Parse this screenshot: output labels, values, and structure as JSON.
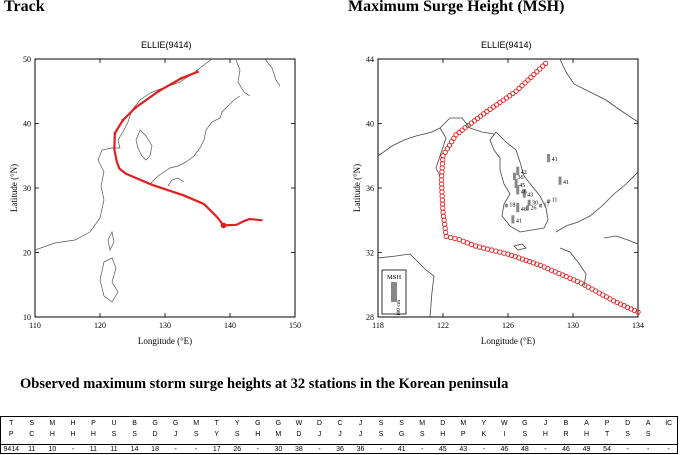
{
  "sections": {
    "track_title": "Track",
    "msh_title": "Maximum Surge Height (MSH)"
  },
  "maps": {
    "track": {
      "storm_label": "ELLIE(9414)",
      "xlabel": "Longitude (°E)",
      "ylabel": "Latitude (°N)",
      "x_ticks": [
        "110",
        "120",
        "130",
        "140",
        "150"
      ],
      "y_ticks": [
        "50",
        "40",
        "30",
        "20",
        "10"
      ],
      "xlim": [
        110,
        150
      ],
      "ylim": [
        10,
        50
      ],
      "track_color": "#e02020",
      "track_points": [
        [
          145,
          25
        ],
        [
          143,
          25.2
        ],
        [
          142,
          24.8
        ],
        [
          141,
          24.3
        ],
        [
          139,
          24.2
        ],
        [
          138,
          25.5
        ],
        [
          136,
          27.5
        ],
        [
          133,
          28.8
        ],
        [
          128,
          30.5
        ],
        [
          124,
          32.2
        ],
        [
          123,
          33
        ],
        [
          122.6,
          34
        ],
        [
          122.2,
          36
        ],
        [
          122.3,
          38.5
        ],
        [
          123.5,
          40.5
        ],
        [
          125.5,
          42.5
        ],
        [
          129,
          45
        ],
        [
          132.5,
          47
        ],
        [
          135,
          48
        ]
      ]
    },
    "msh": {
      "storm_label": "ELLIE(9414)",
      "xlabel": "Longitude (°E)",
      "ylabel": "Latitude (°N)",
      "x_ticks": [
        "118",
        "122",
        "126",
        "130",
        "134"
      ],
      "y_ticks": [
        "44",
        "40",
        "36",
        "32",
        "28"
      ],
      "xlim": [
        118,
        134
      ],
      "ylim": [
        28,
        44
      ],
      "legend_title": "MSH",
      "legend_scale": "100 cm",
      "track_color": "#e02020",
      "track_points": [
        [
          134,
          28.3
        ],
        [
          132.5,
          29
        ],
        [
          130.5,
          30.1
        ],
        [
          128,
          31.2
        ],
        [
          126,
          31.9
        ],
        [
          124,
          32.4
        ],
        [
          123,
          32.8
        ],
        [
          122.2,
          33
        ],
        [
          122,
          34.5
        ],
        [
          121.9,
          36.5
        ],
        [
          122,
          38
        ],
        [
          122.8,
          39.3
        ],
        [
          124.5,
          40.6
        ],
        [
          126.5,
          42
        ],
        [
          128.5,
          43.9
        ]
      ],
      "station_values": [
        "42",
        "36",
        "45",
        "46",
        "43",
        "41",
        "41",
        "30",
        "18",
        "46",
        "26",
        "17",
        "11",
        "41"
      ],
      "station_bar_color": "#888888"
    }
  },
  "observed": {
    "title": "Observed maximum storm surge heights at 32 stations in the Korean peninsula",
    "header_row1": [
      "T",
      "S",
      "M",
      "H",
      "P",
      "U",
      "B",
      "G",
      "G",
      "M",
      "T",
      "Y",
      "G",
      "G",
      "W",
      "D",
      "C",
      "J",
      "S",
      "S",
      "M",
      "D",
      "M",
      "Y",
      "W",
      "G",
      "J",
      "B",
      "A",
      "P",
      "D",
      "A",
      "IC"
    ],
    "header_row2": [
      "P",
      "C",
      "H",
      "H",
      "H",
      "S",
      "S",
      "D",
      "J",
      "S",
      "Y",
      "S",
      "H",
      "M",
      "D",
      "J",
      "J",
      "J",
      "S",
      "G",
      "S",
      "H",
      "P",
      "K",
      "I",
      "S",
      "H",
      "R",
      "H",
      "T",
      "S",
      "S",
      ""
    ],
    "values": [
      "9414",
      "11",
      "10",
      "-",
      "11",
      "11",
      "14",
      "18",
      "-",
      "-",
      "17",
      "26",
      "-",
      "30",
      "38",
      "-",
      "36",
      "36",
      "-",
      "41",
      "-",
      "45",
      "43",
      "-",
      "46",
      "48",
      "-",
      "46",
      "49",
      "54",
      "-",
      "-",
      "-"
    ]
  }
}
